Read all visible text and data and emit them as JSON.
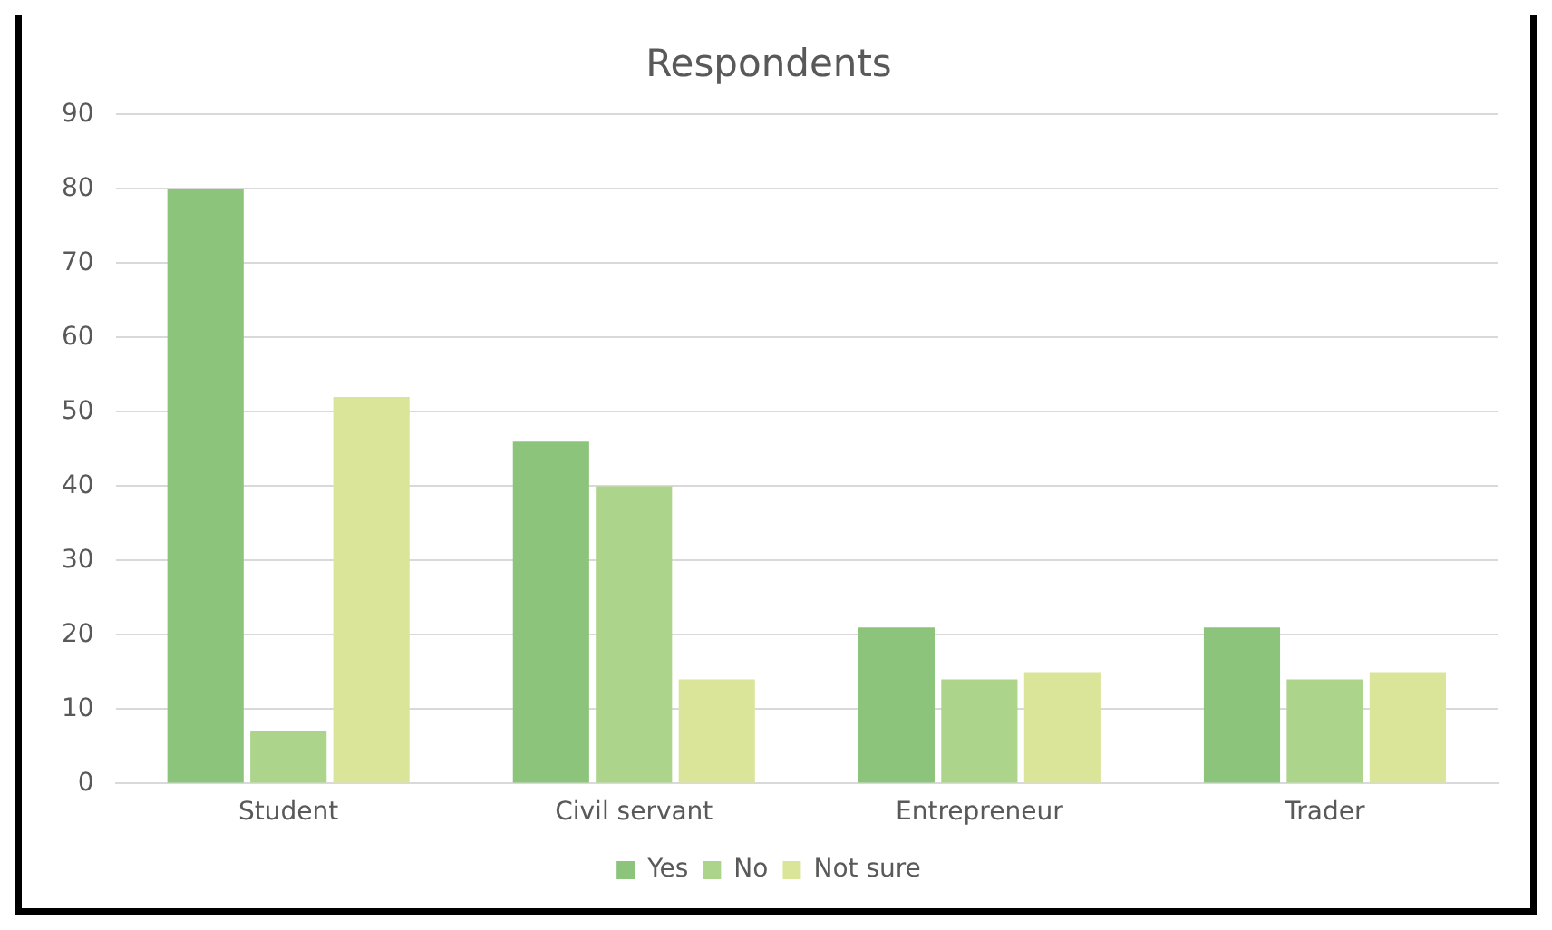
{
  "chart_data": {
    "type": "bar",
    "title": "Respondents",
    "categories": [
      "Student",
      "Civil servant",
      "Entrepreneur",
      "Trader"
    ],
    "series": [
      {
        "name": "Yes",
        "color": "#8dc47c",
        "values": [
          80,
          46,
          21,
          21
        ]
      },
      {
        "name": "No",
        "color": "#acd48a",
        "values": [
          7,
          40,
          14,
          14
        ]
      },
      {
        "name": "Not sure",
        "color": "#dbe59a",
        "values": [
          52,
          14,
          15,
          15
        ]
      }
    ],
    "ylim": [
      0,
      90
    ],
    "yticks": [
      0,
      10,
      20,
      30,
      40,
      50,
      60,
      70,
      80,
      90
    ],
    "grid": "y",
    "legend": "bottom"
  }
}
